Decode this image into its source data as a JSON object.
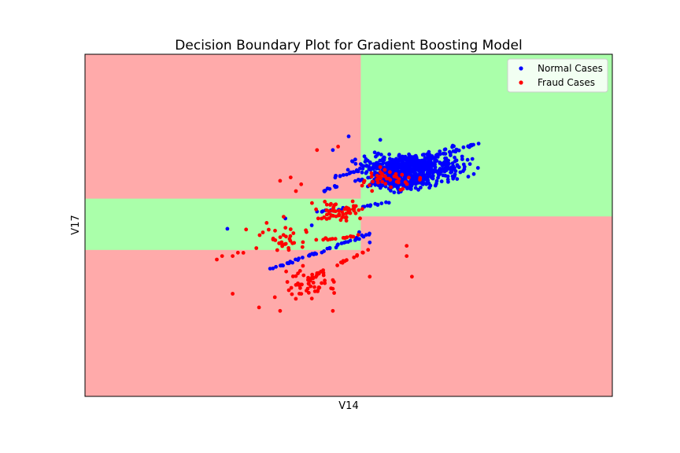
{
  "chart_data": {
    "type": "scatter",
    "title": "Decision Boundary Plot for Gradient Boosting Model",
    "xlabel": "V14",
    "ylabel": "V17",
    "xlim": [
      0,
      100
    ],
    "ylim": [
      0,
      100
    ],
    "grid": false,
    "ticks_visible": false,
    "legend_position": "top-right",
    "colors": {
      "class_normal_region": "#aaffaa",
      "class_fraud_region": "#ffaaaa",
      "normal_points": "#0000ff",
      "fraud_points": "#ff0000"
    },
    "regions": [
      {
        "class": "Normal",
        "x": [
          52.3,
          100
        ],
        "y": [
          52.6,
          100
        ]
      },
      {
        "class": "Normal",
        "x": [
          0,
          52.3
        ],
        "y": [
          42.8,
          57.8
        ]
      }
    ],
    "series": [
      {
        "name": "Normal Cases",
        "color": "#0000ff",
        "clusters": [
          {
            "x": [
              48,
              76
            ],
            "y": [
              62,
              72
            ],
            "n": 500
          },
          {
            "x": [
              52,
              68
            ],
            "y": [
              59,
              67
            ],
            "n": 250
          }
        ],
        "lines": [
          {
            "x0": 45,
            "y0": 60,
            "x1": 75,
            "y1": 74,
            "n": 60
          },
          {
            "x0": 47,
            "y0": 64,
            "x1": 70,
            "y1": 73,
            "n": 40
          },
          {
            "x0": 35,
            "y0": 37,
            "x1": 55,
            "y1": 48,
            "n": 50
          },
          {
            "x0": 45,
            "y0": 54,
            "x1": 60,
            "y1": 57,
            "n": 20
          }
        ],
        "points": [
          [
            27,
            49
          ],
          [
            47,
            72
          ],
          [
            50,
            76
          ],
          [
            56,
            75
          ],
          [
            52,
            48
          ],
          [
            54,
            45
          ],
          [
            38,
            52
          ],
          [
            43,
            50
          ],
          [
            44,
            54
          ]
        ]
      },
      {
        "name": "Fraud Cases",
        "color": "#ff0000",
        "clusters": [
          {
            "x": [
              42,
              55
            ],
            "y": [
              50,
              58
            ],
            "n": 60
          },
          {
            "x": [
              36,
              50
            ],
            "y": [
              26,
              40
            ],
            "n": 45
          },
          {
            "x": [
              50,
              65
            ],
            "y": [
              59,
              67
            ],
            "n": 40
          },
          {
            "x": [
              28,
              46
            ],
            "y": [
              40,
              54
            ],
            "n": 30
          }
        ],
        "lines": [
          {
            "x0": 33,
            "y0": 44,
            "x1": 52,
            "y1": 47,
            "n": 25
          },
          {
            "x0": 38,
            "y0": 31,
            "x1": 54,
            "y1": 43,
            "n": 25
          }
        ],
        "points": [
          [
            25,
            40
          ],
          [
            26,
            41
          ],
          [
            28,
            41
          ],
          [
            29,
            42
          ],
          [
            28,
            30
          ],
          [
            33,
            26
          ],
          [
            37,
            25
          ],
          [
            47,
            25
          ],
          [
            36,
            29
          ],
          [
            53,
            63
          ],
          [
            56,
            67
          ],
          [
            61,
            41
          ],
          [
            62,
            35
          ],
          [
            61,
            44
          ],
          [
            54,
            35
          ],
          [
            48,
            73
          ],
          [
            44,
            72
          ],
          [
            40,
            60
          ],
          [
            41,
            62
          ],
          [
            37,
            63
          ],
          [
            39,
            64
          ],
          [
            47,
            34
          ],
          [
            44,
            36
          ]
        ]
      }
    ]
  }
}
